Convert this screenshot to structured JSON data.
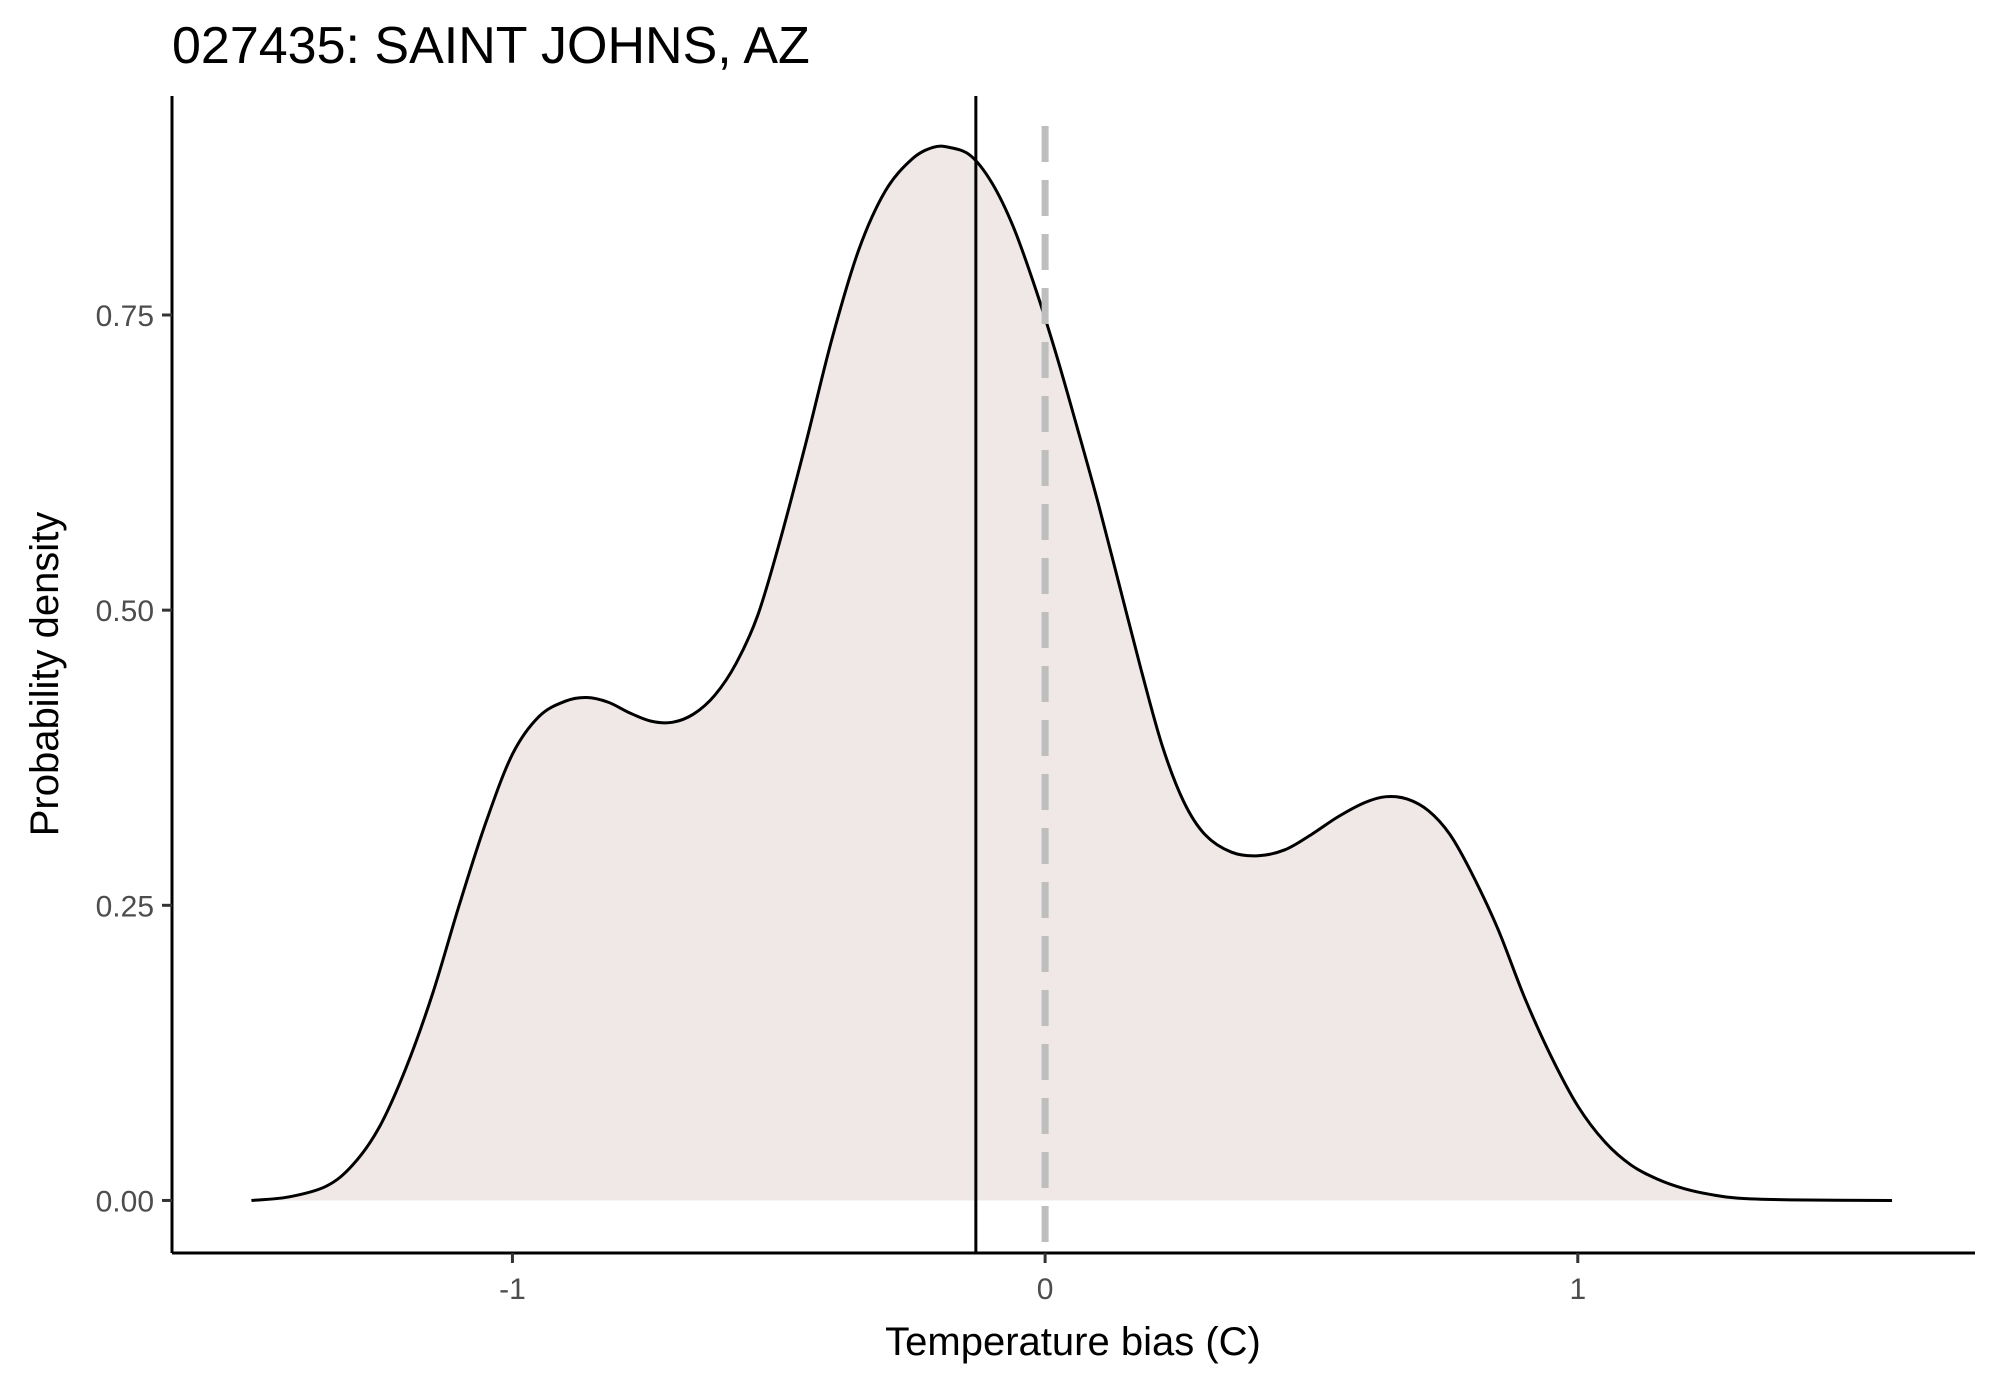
{
  "chart_data": {
    "type": "area",
    "title": "027435: SAINT JOHNS, AZ",
    "xlabel": "Temperature bias (C)",
    "ylabel": "Probability density",
    "xlim": [
      -1.6391,
      1.7457
    ],
    "ylim": [
      -0.0445,
      0.9355
    ],
    "x_ticks": [
      -1,
      0,
      1
    ],
    "x_tick_labels": [
      "-1",
      "0",
      "1"
    ],
    "y_ticks": [
      0,
      0.25,
      0.5,
      0.75
    ],
    "y_tick_labels": [
      "0.00",
      "0.25",
      "0.50",
      "0.75"
    ],
    "grid": false,
    "fill_color": "#efe8e6",
    "line_color": "#000000",
    "reference_lines": [
      {
        "name": "mean-bias-line",
        "x": -0.13,
        "style": "solid",
        "color": "#000000"
      },
      {
        "name": "zero-bias-line",
        "x": 0.0,
        "style": "dashed",
        "color": "#bebebe"
      }
    ],
    "series": [
      {
        "name": "density",
        "points": [
          [
            -1.49,
            0.0
          ],
          [
            -1.42,
            0.003
          ],
          [
            -1.35,
            0.012
          ],
          [
            -1.3,
            0.03
          ],
          [
            -1.25,
            0.062
          ],
          [
            -1.2,
            0.112
          ],
          [
            -1.15,
            0.175
          ],
          [
            -1.1,
            0.25
          ],
          [
            -1.05,
            0.32
          ],
          [
            -1.0,
            0.378
          ],
          [
            -0.95,
            0.41
          ],
          [
            -0.9,
            0.423
          ],
          [
            -0.86,
            0.426
          ],
          [
            -0.82,
            0.422
          ],
          [
            -0.78,
            0.413
          ],
          [
            -0.74,
            0.406
          ],
          [
            -0.7,
            0.405
          ],
          [
            -0.66,
            0.412
          ],
          [
            -0.62,
            0.428
          ],
          [
            -0.58,
            0.455
          ],
          [
            -0.54,
            0.495
          ],
          [
            -0.5,
            0.555
          ],
          [
            -0.45,
            0.64
          ],
          [
            -0.4,
            0.73
          ],
          [
            -0.35,
            0.805
          ],
          [
            -0.3,
            0.855
          ],
          [
            -0.25,
            0.882
          ],
          [
            -0.21,
            0.892
          ],
          [
            -0.18,
            0.892
          ],
          [
            -0.14,
            0.885
          ],
          [
            -0.1,
            0.862
          ],
          [
            -0.06,
            0.825
          ],
          [
            -0.02,
            0.775
          ],
          [
            0.02,
            0.718
          ],
          [
            0.06,
            0.655
          ],
          [
            0.1,
            0.59
          ],
          [
            0.14,
            0.52
          ],
          [
            0.18,
            0.45
          ],
          [
            0.22,
            0.385
          ],
          [
            0.26,
            0.338
          ],
          [
            0.3,
            0.31
          ],
          [
            0.35,
            0.295
          ],
          [
            0.4,
            0.292
          ],
          [
            0.45,
            0.297
          ],
          [
            0.5,
            0.31
          ],
          [
            0.55,
            0.325
          ],
          [
            0.6,
            0.337
          ],
          [
            0.64,
            0.342
          ],
          [
            0.68,
            0.34
          ],
          [
            0.72,
            0.33
          ],
          [
            0.76,
            0.31
          ],
          [
            0.8,
            0.278
          ],
          [
            0.85,
            0.23
          ],
          [
            0.9,
            0.172
          ],
          [
            0.95,
            0.122
          ],
          [
            1.0,
            0.08
          ],
          [
            1.05,
            0.05
          ],
          [
            1.1,
            0.03
          ],
          [
            1.15,
            0.018
          ],
          [
            1.2,
            0.01
          ],
          [
            1.25,
            0.005
          ],
          [
            1.3,
            0.002
          ],
          [
            1.4,
            0.0005
          ],
          [
            1.59,
            0.0
          ]
        ]
      }
    ]
  }
}
